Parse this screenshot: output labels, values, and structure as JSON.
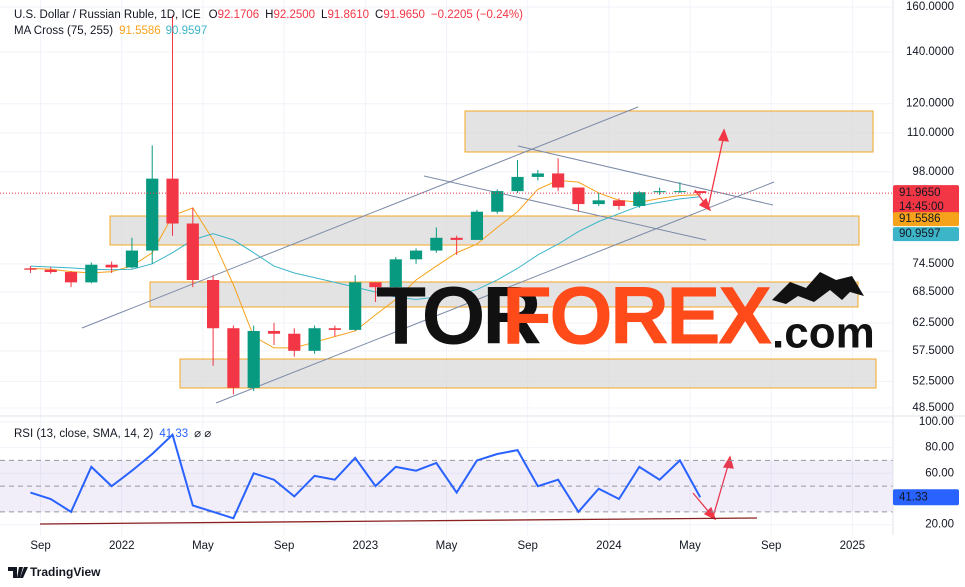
{
  "chart_data": [
    {
      "type": "candlestick",
      "title": "U.S. Dollar / Russian Ruble, 1D, ICE",
      "ohlc_header": [
        {
          "key": "O",
          "text": "92.1706"
        },
        {
          "key": "H",
          "text": "92.2500"
        },
        {
          "key": "L",
          "text": "91.8610"
        },
        {
          "key": "C",
          "text": "91.9650"
        }
      ],
      "change": "−0.2205 (−0.24%)",
      "x": [
        "2021-08",
        "2021-09",
        "2021-10",
        "2021-11",
        "2021-12",
        "2022-01",
        "2022-02",
        "2022-03",
        "2022-04",
        "2022-05",
        "2022-06",
        "2022-07",
        "2022-08",
        "2022-09",
        "2022-10",
        "2022-11",
        "2022-12",
        "2023-01",
        "2023-02",
        "2023-03",
        "2023-04",
        "2023-05",
        "2023-06",
        "2023-07",
        "2023-08",
        "2023-09",
        "2023-10",
        "2023-11",
        "2023-12",
        "2024-01",
        "2024-02",
        "2024-03",
        "2024-04",
        "2024-05"
      ],
      "open": [
        73.5,
        73.2,
        72.7,
        70.5,
        74.3,
        73.7,
        77.5,
        96,
        84,
        71,
        61.5,
        51.5,
        61,
        60.5,
        57.5,
        61.5,
        61.2,
        70.5,
        69.5,
        75.5,
        77.5,
        80.5,
        80,
        87,
        92.5,
        96.5,
        97.5,
        93.5,
        89,
        90,
        88.5,
        92.2,
        92.5,
        92.5
      ],
      "high": [
        74,
        73.8,
        72.9,
        74.8,
        75,
        80.5,
        106,
        156,
        88,
        72,
        62,
        62,
        62.5,
        61.5,
        62,
        62,
        72,
        70.5,
        76,
        78,
        83,
        81,
        87.5,
        93,
        101.5,
        98.5,
        102,
        93.5,
        92,
        90.5,
        92.5,
        93.5,
        95,
        92.5
      ],
      "low": [
        72.5,
        72.3,
        69.5,
        70.3,
        72.5,
        73.5,
        74.5,
        81,
        69.5,
        55,
        50.5,
        51,
        58.5,
        56.5,
        57,
        60,
        61,
        66.5,
        69,
        74.5,
        77,
        76.5,
        80,
        86.5,
        92,
        95.5,
        92.5,
        87,
        88.5,
        87.5,
        88,
        91.5,
        92,
        91.5
      ],
      "close": [
        73.2,
        72.7,
        70.5,
        74.3,
        73.7,
        77.5,
        96,
        84,
        71,
        61.5,
        51.5,
        61,
        60.5,
        57.5,
        61.5,
        61.2,
        70.5,
        69.5,
        75.5,
        77.5,
        80.5,
        80,
        87,
        92.5,
        96.5,
        97.5,
        93.5,
        89,
        90,
        88.5,
        92.2,
        92.5,
        92.5,
        91.965
      ],
      "up_color": "#089981",
      "down_color": "#f23645",
      "log_scale": true,
      "ylim": [
        47.5,
        163.4
      ],
      "yticks": [
        {
          "value": 160,
          "label": "160.0000"
        },
        {
          "value": 140,
          "label": "140.0000"
        },
        {
          "value": 120,
          "label": "120.0000"
        },
        {
          "value": 110,
          "label": "110.0000"
        },
        {
          "value": 98,
          "label": "98.0000"
        },
        {
          "value": 74.5,
          "label": "74.5000"
        },
        {
          "value": 68.5,
          "label": "68.5000"
        },
        {
          "value": 62.5,
          "label": "62.5000"
        },
        {
          "value": 57.5,
          "label": "57.5000"
        },
        {
          "value": 52.5,
          "label": "52.5000"
        },
        {
          "value": 48.5,
          "label": "48.5000"
        }
      ],
      "xlim": [
        "2021-07",
        "2025-03"
      ],
      "xticks": [
        {
          "value": "2021-09",
          "label": "Sep"
        },
        {
          "value": "2022-01",
          "label": "2022"
        },
        {
          "value": "2022-05",
          "label": "May"
        },
        {
          "value": "2022-09",
          "label": "Sep"
        },
        {
          "value": "2023-01",
          "label": "2023"
        },
        {
          "value": "2023-05",
          "label": "May"
        },
        {
          "value": "2023-09",
          "label": "Sep"
        },
        {
          "value": "2024-01",
          "label": "2024"
        },
        {
          "value": "2024-05",
          "label": "May"
        },
        {
          "value": "2024-09",
          "label": "Sep"
        },
        {
          "value": "2025-01",
          "label": "2025"
        }
      ],
      "last_price": {
        "value": 91.965,
        "label": "91.9650",
        "countdown": "14:45:00"
      },
      "overlay": {
        "label": "MA Cross (75, 255)",
        "series": [
          {
            "color": "#f7a21b",
            "last_label": "91.5586",
            "values": [
              73.5,
              73.3,
              72.8,
              72.5,
              72.8,
              74,
              77,
              86,
              88,
              80,
              70,
              60,
              58,
              58,
              59,
              60,
              61,
              64,
              67,
              71,
              74,
              77,
              79,
              83,
              87,
              93,
              95.5,
              95,
              92,
              90,
              89.5,
              90.5,
              91.3,
              91.5586
            ]
          },
          {
            "color": "#3cb5c9",
            "last_label": "90.9597",
            "values": [
              74,
              73.8,
              73.6,
              73.3,
              73.2,
              73.3,
              74.5,
              77,
              80,
              81.5,
              80,
              77,
              74,
              72.5,
              71.5,
              70.5,
              69.5,
              68.5,
              67.5,
              67,
              67.5,
              68,
              69,
              71,
              73.5,
              76.5,
              79,
              82,
              84.5,
              86.5,
              88.5,
              89.5,
              90.4,
              90.9597
            ]
          }
        ]
      }
    },
    {
      "type": "line",
      "title": "RSI (13, close, SMA, 14, 2)",
      "status_icons": "⌀ ⌀",
      "x": [
        "2021-08",
        "2021-09",
        "2021-10",
        "2021-11",
        "2021-12",
        "2022-01",
        "2022-02",
        "2022-03",
        "2022-04",
        "2022-05",
        "2022-06",
        "2022-07",
        "2022-08",
        "2022-09",
        "2022-10",
        "2022-11",
        "2022-12",
        "2023-01",
        "2023-02",
        "2023-03",
        "2023-04",
        "2023-05",
        "2023-06",
        "2023-07",
        "2023-08",
        "2023-09",
        "2023-10",
        "2023-11",
        "2023-12",
        "2024-01",
        "2024-02",
        "2024-03",
        "2024-04",
        "2024-05"
      ],
      "series": [
        {
          "color": "#2962ff",
          "value_label": "41.33",
          "values": [
            45,
            40,
            30,
            65,
            50,
            62,
            75,
            90,
            35,
            30,
            25,
            60,
            55,
            42,
            58,
            55,
            72,
            50,
            65,
            62,
            68,
            45,
            70,
            75,
            78,
            50,
            55,
            30,
            48,
            40,
            65,
            55,
            70,
            41.33
          ]
        }
      ],
      "ylim": [
        12,
        103
      ],
      "yticks": [
        {
          "value": 100,
          "label": "100.00"
        },
        {
          "value": 80,
          "label": "80.00"
        },
        {
          "value": 60,
          "label": "60.00"
        },
        {
          "value": 20,
          "label": "20.00"
        }
      ],
      "levels": [
        70,
        50,
        30
      ],
      "band_color": "#7e57c2"
    }
  ],
  "watermark": [
    "TOR",
    "FOREX",
    ".com"
  ],
  "footer": "TradingView"
}
